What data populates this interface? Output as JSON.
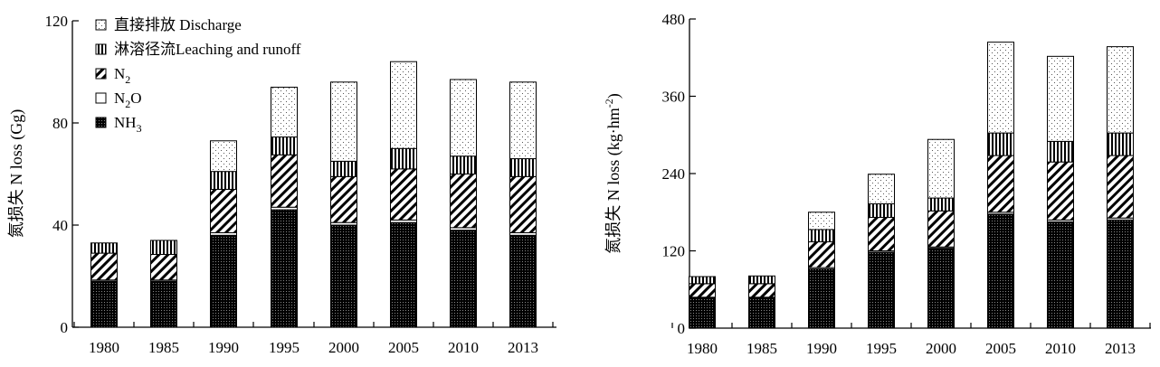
{
  "chart_data": [
    {
      "type": "bar",
      "stacked": true,
      "ylabel": "氮损失 N loss (Gg)",
      "ylim": [
        0,
        120
      ],
      "yticks": [
        0,
        40,
        80,
        120
      ],
      "grid": false,
      "legend_position": "top-left",
      "categories": [
        "1980",
        "1985",
        "1990",
        "1995",
        "2000",
        "2005",
        "2010",
        "2013"
      ],
      "series": [
        {
          "name": "NH3",
          "pattern": "dense-dots",
          "values": [
            18,
            18,
            36,
            46,
            40,
            41,
            38,
            36
          ]
        },
        {
          "name": "N2O",
          "pattern": "plain",
          "values": [
            0.5,
            0.5,
            1,
            1,
            1,
            1,
            1,
            1
          ]
        },
        {
          "name": "N2",
          "pattern": "diagonal-hatch",
          "values": [
            10.5,
            10,
            17,
            20.5,
            18,
            20,
            21,
            22
          ]
        },
        {
          "name": "淋溶径流Leaching and runoff",
          "pattern": "vertical-lines",
          "values": [
            4,
            5.5,
            7,
            7,
            6,
            8,
            7,
            7
          ]
        },
        {
          "name": "直接排放 Discharge",
          "pattern": "sparse-dots",
          "values": [
            0,
            0,
            12,
            19.5,
            31,
            34,
            30,
            30
          ]
        }
      ]
    },
    {
      "type": "bar",
      "stacked": true,
      "ylabel": "氮损失 N loss (kg·hm",
      "ylabel_sup": "-2",
      "ylabel_end": ")",
      "ylim": [
        0,
        480
      ],
      "yticks": [
        0,
        120,
        240,
        360,
        480
      ],
      "grid": false,
      "categories": [
        "1980",
        "1985",
        "1990",
        "1995",
        "2000",
        "2005",
        "2010",
        "2013"
      ],
      "series": [
        {
          "name": "NH3",
          "values": [
            47,
            47,
            92,
            118,
            124,
            177,
            165,
            168
          ]
        },
        {
          "name": "N2O",
          "values": [
            1,
            1,
            2,
            2,
            2,
            3,
            3,
            3
          ]
        },
        {
          "name": "N2",
          "values": [
            21,
            21,
            40,
            52,
            56,
            88,
            90,
            97
          ]
        },
        {
          "name": "淋溶径流Leaching and runoff",
          "values": [
            11,
            12,
            19,
            21,
            20,
            35,
            32,
            35
          ]
        },
        {
          "name": "直接排放 Discharge",
          "values": [
            0,
            0,
            27,
            46,
            91,
            141,
            132,
            134
          ]
        }
      ]
    }
  ],
  "legend": [
    {
      "key": "discharge",
      "text": "直接排放 Discharge"
    },
    {
      "key": "leaching",
      "text": "淋溶径流Leaching and runoff"
    },
    {
      "key": "n2",
      "text": "N",
      "sub": "2"
    },
    {
      "key": "n2o",
      "text": "N",
      "sub": "2",
      "tail": "O"
    },
    {
      "key": "nh3",
      "text": "NH",
      "sub": "3"
    }
  ]
}
